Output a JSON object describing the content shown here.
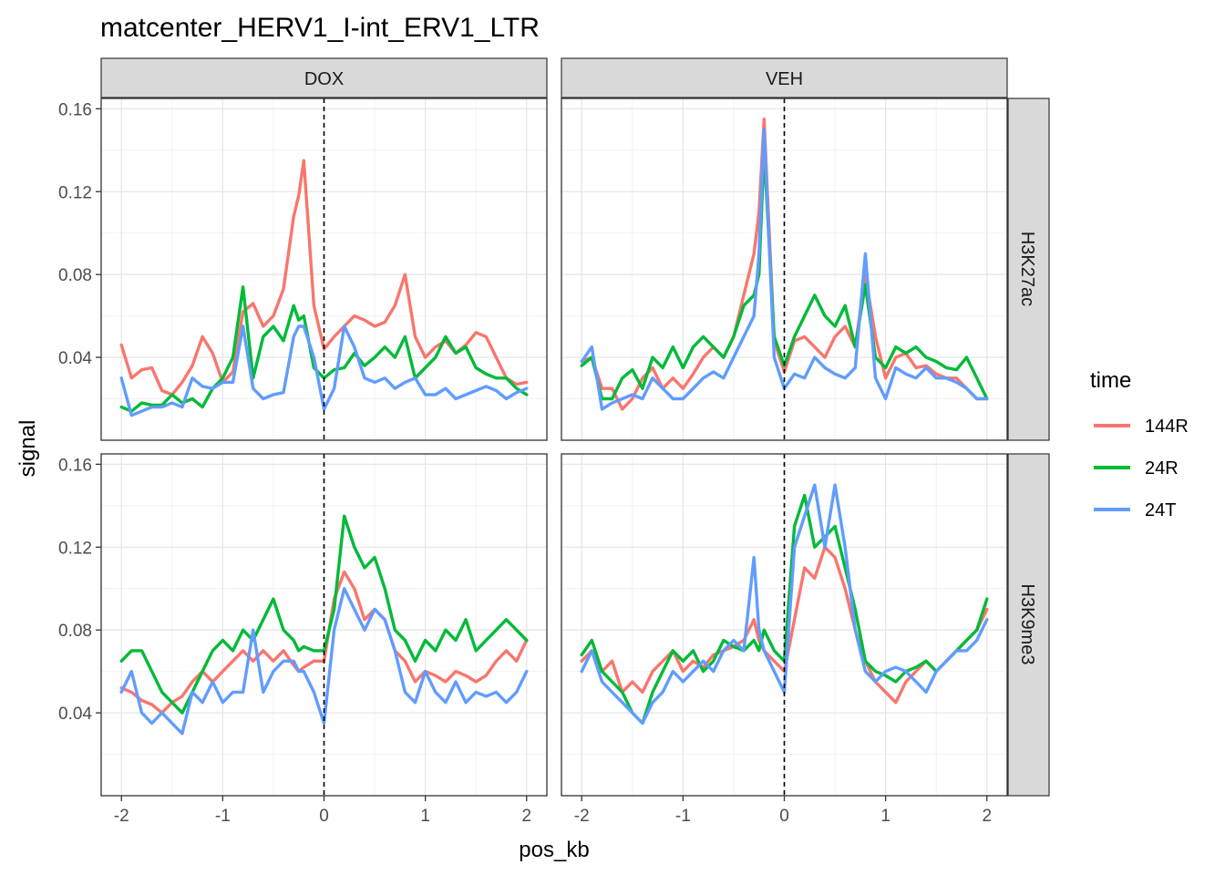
{
  "chart_data": {
    "type": "line",
    "title": "matcenter_HERV1_I-int_ERV1_LTR",
    "xlabel": "pos_kb",
    "ylabel": "signal",
    "xlim": [
      -2.2,
      2.2
    ],
    "ylim": [
      0.0,
      0.165
    ],
    "x_ticks": [
      -2,
      -1,
      0,
      1,
      2
    ],
    "y_ticks": [
      0.04,
      0.08,
      0.12,
      0.16
    ],
    "x_tick_labels": [
      "-2",
      "-1",
      "0",
      "1",
      "2"
    ],
    "y_tick_labels": [
      "0.04",
      "0.08",
      "0.12",
      "0.16"
    ],
    "grid": true,
    "vline_x": 0,
    "facet_cols": [
      "DOX",
      "VEH"
    ],
    "facet_rows": [
      "H3K27ac",
      "H3K9me3"
    ],
    "legend": {
      "title": "time",
      "position": "right",
      "entries": [
        {
          "label": "144R",
          "color": "#F8766D"
        },
        {
          "label": "24R",
          "color": "#00BA38"
        },
        {
          "label": "24T",
          "color": "#619CFF"
        }
      ]
    },
    "x": [
      -2.0,
      -1.9,
      -1.8,
      -1.7,
      -1.6,
      -1.5,
      -1.4,
      -1.3,
      -1.2,
      -1.1,
      -1.0,
      -0.9,
      -0.8,
      -0.7,
      -0.6,
      -0.5,
      -0.4,
      -0.3,
      -0.25,
      -0.2,
      -0.1,
      0.0,
      0.1,
      0.2,
      0.3,
      0.4,
      0.5,
      0.6,
      0.7,
      0.8,
      0.9,
      1.0,
      1.1,
      1.2,
      1.3,
      1.4,
      1.5,
      1.6,
      1.7,
      1.8,
      1.9,
      2.0
    ],
    "panels": [
      {
        "col": "DOX",
        "row": "H3K27ac",
        "series": [
          {
            "name": "144R",
            "values": [
              0.046,
              0.03,
              0.034,
              0.035,
              0.024,
              0.022,
              0.028,
              0.036,
              0.05,
              0.042,
              0.028,
              0.033,
              0.062,
              0.066,
              0.055,
              0.06,
              0.073,
              0.108,
              0.118,
              0.135,
              0.065,
              0.044,
              0.05,
              0.055,
              0.06,
              0.058,
              0.055,
              0.057,
              0.065,
              0.08,
              0.05,
              0.04,
              0.045,
              0.048,
              0.042,
              0.046,
              0.052,
              0.05,
              0.04,
              0.03,
              0.027,
              0.028
            ]
          },
          {
            "name": "24R",
            "values": [
              0.016,
              0.014,
              0.018,
              0.017,
              0.017,
              0.022,
              0.018,
              0.02,
              0.016,
              0.025,
              0.03,
              0.04,
              0.074,
              0.03,
              0.05,
              0.055,
              0.048,
              0.065,
              0.058,
              0.06,
              0.035,
              0.03,
              0.034,
              0.035,
              0.042,
              0.036,
              0.04,
              0.045,
              0.04,
              0.05,
              0.03,
              0.035,
              0.04,
              0.05,
              0.042,
              0.045,
              0.035,
              0.032,
              0.03,
              0.03,
              0.025,
              0.022
            ]
          },
          {
            "name": "24T",
            "values": [
              0.03,
              0.012,
              0.014,
              0.016,
              0.016,
              0.018,
              0.016,
              0.03,
              0.026,
              0.025,
              0.028,
              0.028,
              0.055,
              0.025,
              0.02,
              0.022,
              0.023,
              0.05,
              0.055,
              0.055,
              0.04,
              0.015,
              0.025,
              0.055,
              0.045,
              0.03,
              0.028,
              0.03,
              0.025,
              0.028,
              0.03,
              0.022,
              0.022,
              0.025,
              0.02,
              0.022,
              0.024,
              0.026,
              0.024,
              0.02,
              0.023,
              0.025
            ]
          }
        ]
      },
      {
        "col": "VEH",
        "row": "H3K27ac",
        "series": [
          {
            "name": "144R",
            "values": [
              0.038,
              0.04,
              0.025,
              0.025,
              0.015,
              0.02,
              0.03,
              0.035,
              0.025,
              0.03,
              0.025,
              0.032,
              0.04,
              0.045,
              0.04,
              0.05,
              0.07,
              0.09,
              0.11,
              0.155,
              0.048,
              0.033,
              0.048,
              0.05,
              0.045,
              0.04,
              0.05,
              0.055,
              0.045,
              0.08,
              0.05,
              0.03,
              0.04,
              0.042,
              0.035,
              0.036,
              0.032,
              0.03,
              0.03,
              0.025,
              0.02,
              0.02
            ]
          },
          {
            "name": "24R",
            "values": [
              0.036,
              0.04,
              0.02,
              0.02,
              0.03,
              0.034,
              0.025,
              0.04,
              0.035,
              0.045,
              0.035,
              0.045,
              0.05,
              0.045,
              0.04,
              0.05,
              0.065,
              0.07,
              0.08,
              0.14,
              0.05,
              0.036,
              0.05,
              0.06,
              0.07,
              0.06,
              0.055,
              0.065,
              0.045,
              0.075,
              0.04,
              0.035,
              0.045,
              0.042,
              0.045,
              0.04,
              0.038,
              0.035,
              0.034,
              0.04,
              0.03,
              0.02
            ]
          },
          {
            "name": "24T",
            "values": [
              0.038,
              0.045,
              0.015,
              0.018,
              0.02,
              0.022,
              0.02,
              0.03,
              0.025,
              0.02,
              0.02,
              0.025,
              0.03,
              0.033,
              0.03,
              0.04,
              0.05,
              0.06,
              0.09,
              0.15,
              0.04,
              0.025,
              0.032,
              0.03,
              0.04,
              0.035,
              0.032,
              0.03,
              0.035,
              0.09,
              0.03,
              0.02,
              0.035,
              0.032,
              0.03,
              0.035,
              0.03,
              0.03,
              0.028,
              0.025,
              0.02,
              0.02
            ]
          }
        ]
      },
      {
        "col": "DOX",
        "row": "H3K9me3",
        "series": [
          {
            "name": "144R",
            "values": [
              0.052,
              0.05,
              0.046,
              0.044,
              0.04,
              0.045,
              0.048,
              0.055,
              0.06,
              0.055,
              0.06,
              0.065,
              0.07,
              0.065,
              0.07,
              0.065,
              0.07,
              0.063,
              0.06,
              0.062,
              0.065,
              0.065,
              0.095,
              0.108,
              0.1,
              0.085,
              0.09,
              0.085,
              0.07,
              0.065,
              0.055,
              0.06,
              0.058,
              0.055,
              0.06,
              0.058,
              0.055,
              0.058,
              0.065,
              0.07,
              0.065,
              0.075
            ]
          },
          {
            "name": "24R",
            "values": [
              0.065,
              0.07,
              0.07,
              0.06,
              0.05,
              0.045,
              0.04,
              0.05,
              0.06,
              0.07,
              0.075,
              0.07,
              0.08,
              0.075,
              0.085,
              0.095,
              0.08,
              0.075,
              0.07,
              0.072,
              0.07,
              0.07,
              0.09,
              0.135,
              0.12,
              0.11,
              0.115,
              0.1,
              0.08,
              0.075,
              0.065,
              0.075,
              0.07,
              0.08,
              0.075,
              0.085,
              0.07,
              0.075,
              0.08,
              0.085,
              0.08,
              0.075
            ]
          },
          {
            "name": "24T",
            "values": [
              0.05,
              0.06,
              0.04,
              0.035,
              0.04,
              0.035,
              0.03,
              0.05,
              0.045,
              0.055,
              0.045,
              0.05,
              0.05,
              0.08,
              0.05,
              0.06,
              0.065,
              0.065,
              0.06,
              0.06,
              0.05,
              0.035,
              0.08,
              0.1,
              0.09,
              0.08,
              0.09,
              0.085,
              0.07,
              0.05,
              0.045,
              0.06,
              0.05,
              0.045,
              0.055,
              0.045,
              0.05,
              0.048,
              0.05,
              0.045,
              0.05,
              0.06
            ]
          }
        ]
      },
      {
        "col": "VEH",
        "row": "H3K9me3",
        "series": [
          {
            "name": "144R",
            "values": [
              0.065,
              0.07,
              0.06,
              0.065,
              0.05,
              0.055,
              0.05,
              0.06,
              0.065,
              0.07,
              0.06,
              0.065,
              0.062,
              0.068,
              0.07,
              0.072,
              0.075,
              0.085,
              0.075,
              0.07,
              0.065,
              0.06,
              0.085,
              0.11,
              0.105,
              0.12,
              0.115,
              0.1,
              0.08,
              0.065,
              0.055,
              0.05,
              0.045,
              0.055,
              0.06,
              0.065,
              0.06,
              0.065,
              0.07,
              0.075,
              0.08,
              0.09
            ]
          },
          {
            "name": "24R",
            "values": [
              0.068,
              0.075,
              0.06,
              0.055,
              0.05,
              0.04,
              0.035,
              0.05,
              0.06,
              0.07,
              0.065,
              0.07,
              0.06,
              0.065,
              0.075,
              0.072,
              0.07,
              0.075,
              0.07,
              0.08,
              0.07,
              0.065,
              0.13,
              0.145,
              0.12,
              0.125,
              0.13,
              0.11,
              0.09,
              0.065,
              0.06,
              0.058,
              0.055,
              0.06,
              0.062,
              0.065,
              0.06,
              0.065,
              0.07,
              0.075,
              0.08,
              0.095
            ]
          },
          {
            "name": "24T",
            "values": [
              0.06,
              0.07,
              0.055,
              0.05,
              0.045,
              0.04,
              0.035,
              0.045,
              0.05,
              0.06,
              0.055,
              0.06,
              0.065,
              0.06,
              0.07,
              0.075,
              0.07,
              0.115,
              0.08,
              0.07,
              0.06,
              0.05,
              0.12,
              0.135,
              0.15,
              0.12,
              0.15,
              0.12,
              0.08,
              0.06,
              0.055,
              0.06,
              0.062,
              0.06,
              0.055,
              0.05,
              0.06,
              0.065,
              0.07,
              0.07,
              0.075,
              0.085
            ]
          }
        ]
      }
    ]
  }
}
